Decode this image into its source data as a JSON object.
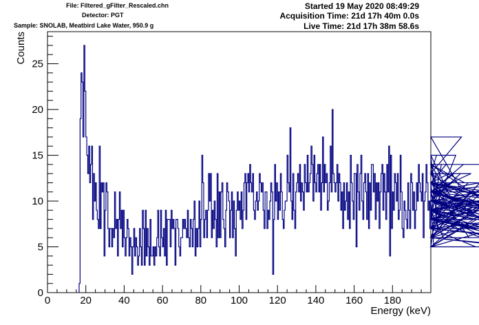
{
  "header": {
    "file": "File: Filtered_gFilter_Rescaled.chn",
    "detector": "Detector: PGT",
    "sample": "Sample:  SNOLAB, Meatbird Lake Water, 950.9 g",
    "started": "Started 19 May 2020 08:49:29",
    "acquisition": "Acquisition Time: 21d 17h 40m 0.0s",
    "live": "Live Time: 21d 17h 38m 58.6s"
  },
  "colors": {
    "series": "#000080",
    "axis": "#000000",
    "background": "#ffffff"
  },
  "chart_data": {
    "type": "line",
    "style": "step histogram",
    "xlabel": "Energy (keV)",
    "ylabel": "Counts",
    "xlim": [
      0,
      200
    ],
    "ylim": [
      0,
      28.5
    ],
    "xticks": [
      0,
      20,
      40,
      60,
      80,
      100,
      120,
      140,
      160,
      180
    ],
    "yticks": [
      0,
      5,
      10,
      15,
      20,
      25
    ],
    "grid": false,
    "legend": "none",
    "bin_width": 0.5,
    "x_start": 16.5,
    "series": [
      {
        "values": [
          1,
          19,
          24,
          23,
          17,
          27,
          22,
          17,
          15,
          13,
          16,
          12,
          14,
          16,
          8,
          13,
          10,
          12,
          9,
          8,
          7,
          16,
          7,
          12,
          11,
          12,
          4,
          9,
          12,
          11,
          7,
          5,
          7,
          7,
          5,
          7,
          6,
          11,
          7,
          8,
          4,
          8,
          11,
          7,
          9,
          5,
          9,
          6,
          4,
          6,
          8,
          7,
          4,
          6,
          5,
          2,
          5,
          7,
          4,
          6,
          5,
          3,
          4,
          7,
          5,
          3,
          9,
          7,
          3,
          9,
          4,
          7,
          5,
          3,
          8,
          4,
          4,
          5,
          3,
          5,
          4,
          6,
          9,
          5,
          4,
          9,
          6,
          5,
          7,
          4,
          9,
          3,
          8,
          8,
          8,
          5,
          9,
          7,
          8,
          7,
          3,
          8,
          8,
          7,
          5,
          4,
          6,
          6,
          8,
          7,
          8,
          7,
          6,
          9,
          6,
          5,
          8,
          7,
          5,
          8,
          10,
          4,
          7,
          5,
          7,
          10,
          5,
          8,
          15,
          12,
          6,
          8,
          9,
          6,
          9,
          13,
          10,
          13,
          6,
          9,
          7,
          10,
          8,
          5,
          13,
          6,
          11,
          6,
          11,
          12,
          8,
          7,
          5,
          9,
          12,
          11,
          10,
          6,
          9,
          11,
          6,
          10,
          7,
          4,
          9,
          11,
          9,
          10,
          8,
          11,
          7,
          9,
          12,
          13,
          8,
          12,
          13,
          11,
          14,
          12,
          11,
          13,
          9,
          8,
          10,
          11,
          9,
          10,
          13,
          12,
          11,
          12,
          9,
          7,
          11,
          11,
          7,
          9,
          8,
          10,
          12,
          11,
          2,
          8,
          14,
          10,
          12,
          8,
          11,
          9,
          13,
          11,
          8,
          7,
          9,
          10,
          10,
          15,
          12,
          11,
          18,
          10,
          8,
          13,
          9,
          7,
          11,
          12,
          13,
          11,
          14,
          10,
          12,
          11,
          9,
          14,
          12,
          11,
          15,
          11,
          12,
          13,
          16,
          14,
          10,
          15,
          12,
          11,
          13,
          14,
          11,
          14,
          9,
          12,
          17,
          11,
          14,
          12,
          13,
          9,
          10,
          12,
          16,
          11,
          20,
          13,
          12,
          11,
          12,
          14,
          10,
          13,
          12,
          9,
          11,
          7,
          12,
          9,
          10,
          12,
          8,
          11,
          7,
          15,
          12,
          10,
          8,
          13,
          13,
          5,
          14,
          11,
          9,
          13,
          15,
          10,
          8,
          12,
          13,
          11,
          8,
          13,
          7,
          12,
          9,
          14,
          14,
          11,
          13,
          8,
          12,
          10,
          12,
          7,
          11,
          13,
          14,
          9,
          13,
          11,
          8,
          14,
          11,
          16,
          4,
          15,
          7,
          11,
          9,
          13,
          12,
          10,
          13,
          8,
          9,
          15,
          11,
          7,
          6,
          10,
          9,
          8,
          7,
          12,
          9,
          7,
          13,
          12,
          9,
          11,
          7,
          9,
          12,
          10,
          14,
          12,
          11,
          10,
          13,
          6,
          10,
          11,
          14,
          12,
          9,
          10,
          7,
          12,
          11,
          10,
          5,
          8,
          13,
          15,
          7,
          9,
          11,
          8,
          14,
          9,
          6,
          10,
          12,
          14,
          11,
          12,
          13,
          9,
          10,
          12,
          11,
          13,
          8,
          15,
          9,
          7,
          11,
          10,
          13,
          17,
          11,
          14,
          12,
          9,
          10,
          8,
          12,
          6,
          11,
          13,
          10,
          9,
          8,
          7,
          5,
          8,
          10,
          11,
          12,
          8,
          6,
          11,
          9,
          7,
          10,
          8,
          7,
          12,
          11,
          9,
          8,
          8,
          10,
          9,
          6,
          14,
          9,
          12,
          10,
          8,
          11,
          9,
          5,
          12,
          10,
          11,
          10,
          7,
          8,
          6,
          11,
          9,
          10,
          7,
          6,
          5,
          11,
          12,
          8,
          7,
          6,
          12,
          10,
          9,
          7,
          6,
          5,
          8,
          6,
          9,
          11,
          8,
          10,
          7,
          12,
          9,
          11,
          5
        ]
      }
    ]
  }
}
